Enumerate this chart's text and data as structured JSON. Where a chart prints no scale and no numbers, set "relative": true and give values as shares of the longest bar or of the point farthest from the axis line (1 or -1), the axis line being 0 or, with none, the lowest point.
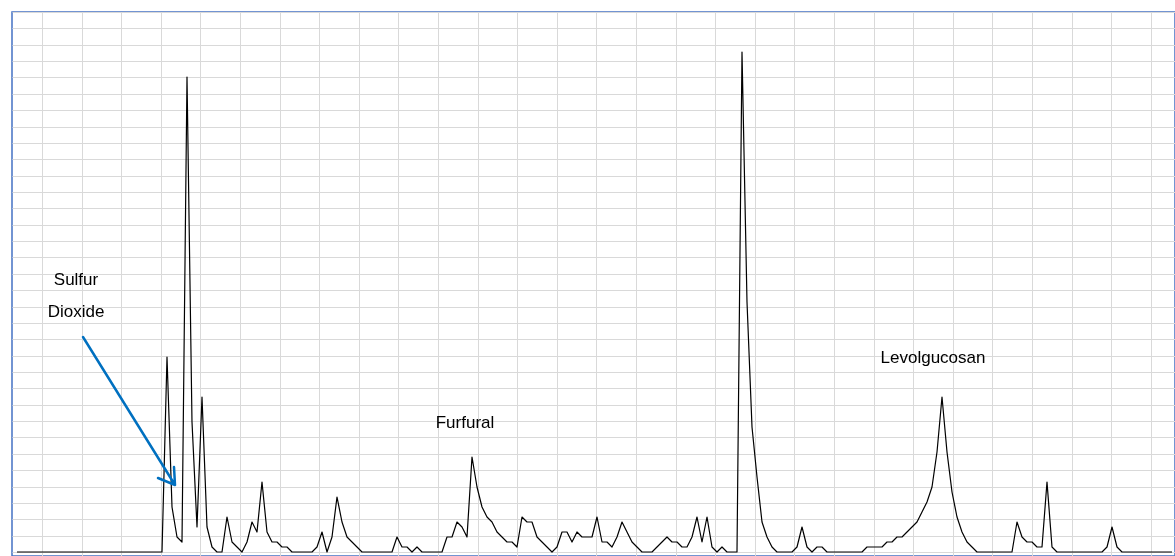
{
  "chart_data": {
    "type": "line",
    "relative": true,
    "grid": true,
    "line_style": "solid",
    "annotations": [
      "Sulfur Dioxide",
      "Furfural",
      "Levolgucosan"
    ],
    "categories": [
      null,
      null,
      null,
      null,
      null,
      null,
      null,
      null,
      null,
      null,
      null,
      null,
      null,
      null,
      null,
      null,
      null,
      null,
      null,
      null,
      null,
      null,
      null,
      null,
      null,
      null,
      null,
      null,
      null,
      null,
      null,
      null,
      null,
      null,
      null,
      null,
      null,
      null,
      null,
      null,
      null,
      null,
      null,
      null,
      null,
      null,
      null,
      null,
      null,
      null,
      null,
      null,
      null,
      null,
      null,
      null,
      null,
      null,
      null,
      null,
      null,
      null,
      null,
      null,
      null,
      null,
      null,
      null,
      null,
      null,
      null,
      null,
      null,
      null,
      null,
      null,
      null,
      null,
      null,
      null,
      null,
      null,
      null,
      null,
      null,
      null,
      null,
      null,
      null,
      null,
      null,
      null,
      null,
      null,
      null,
      null,
      null,
      null,
      null,
      null,
      null,
      null,
      null,
      null,
      null,
      null,
      null,
      null,
      null,
      null,
      null,
      null,
      null,
      null,
      null,
      null,
      null,
      null,
      null,
      null,
      null,
      null,
      null,
      null,
      null,
      null,
      null,
      null,
      null,
      null,
      null,
      null,
      null,
      null,
      null,
      null,
      null,
      null,
      null,
      null,
      null,
      null,
      null,
      null,
      null,
      null,
      null,
      null,
      null,
      null,
      null,
      null,
      null,
      null,
      null,
      null,
      null,
      null,
      null,
      null,
      null,
      null,
      null,
      null,
      null,
      null,
      null,
      null,
      null,
      null,
      null,
      null,
      null,
      null,
      null,
      null,
      null,
      null,
      null,
      null,
      null,
      null,
      null,
      null,
      null,
      null,
      null,
      null,
      null,
      null,
      null,
      null,
      null,
      null,
      null,
      null,
      null,
      null,
      null,
      null,
      null,
      null,
      null,
      null,
      null,
      null,
      null,
      null,
      null,
      null,
      null,
      null,
      null,
      null,
      null,
      null,
      null,
      null,
      null,
      null,
      null,
      null,
      null,
      null,
      null,
      null,
      null,
      null,
      null,
      null,
      null,
      null
    ],
    "series": [
      {
        "color": "#000000",
        "values": [
          0,
          0,
          0,
          0,
          0,
          0,
          0,
          0,
          0,
          0,
          0,
          0,
          0,
          0,
          0,
          0,
          0,
          0,
          0,
          0,
          0,
          0,
          0,
          0,
          0,
          0,
          0,
          0,
          0,
          0,
          0.39,
          0.09,
          0.03,
          0.02,
          0.95,
          0.26,
          0.05,
          0.31,
          0.05,
          0.01,
          0,
          0,
          0.07,
          0.02,
          0.01,
          0,
          0.02,
          0.06,
          0.04,
          0.14,
          0.04,
          0.02,
          0.02,
          0.01,
          0.01,
          0,
          0,
          0,
          0,
          0,
          0.01,
          0.04,
          0,
          0.03,
          0.11,
          0.06,
          0.03,
          0.02,
          0.01,
          0,
          0,
          0,
          0,
          0,
          0,
          0,
          0.03,
          0.01,
          0.01,
          0,
          0.01,
          0,
          0,
          0,
          0,
          0,
          0.03,
          0.03,
          0.06,
          0.05,
          0.03,
          0.19,
          0.13,
          0.09,
          0.07,
          0.06,
          0.04,
          0.03,
          0.02,
          0.02,
          0.01,
          0.07,
          0.06,
          0.06,
          0.03,
          0.02,
          0.01,
          0,
          0.01,
          0.04,
          0.04,
          0.02,
          0.04,
          0.03,
          0.03,
          0.03,
          0.07,
          0.02,
          0.02,
          0.01,
          0.03,
          0.06,
          0.04,
          0.02,
          0.01,
          0,
          0,
          0,
          0.01,
          0.02,
          0.03,
          0.02,
          0.02,
          0.01,
          0.01,
          0.03,
          0.07,
          0.02,
          0.07,
          0.01,
          0,
          0.01,
          0,
          0,
          0,
          1,
          0.5,
          0.25,
          0.15,
          0.06,
          0.03,
          0.01,
          0,
          0,
          0,
          0,
          0.01,
          0.05,
          0.01,
          0,
          0.01,
          0.01,
          0,
          0,
          0,
          0,
          0,
          0,
          0,
          0,
          0.01,
          0.01,
          0.01,
          0.01,
          0.02,
          0.02,
          0.03,
          0.03,
          0.04,
          0.05,
          0.06,
          0.08,
          0.1,
          0.13,
          0.2,
          0.31,
          0.2,
          0.12,
          0.07,
          0.04,
          0.02,
          0.01,
          0,
          0,
          0,
          0,
          0,
          0,
          0,
          0,
          0.06,
          0.03,
          0.02,
          0.02,
          0.01,
          0.01,
          0.14,
          0.01,
          0,
          0,
          0,
          0,
          0,
          0,
          0,
          0,
          0,
          0,
          0.01,
          0.05,
          0.01,
          0,
          0,
          0,
          0,
          0,
          0,
          0,
          0,
          0,
          0,
          0
        ]
      }
    ]
  }
}
